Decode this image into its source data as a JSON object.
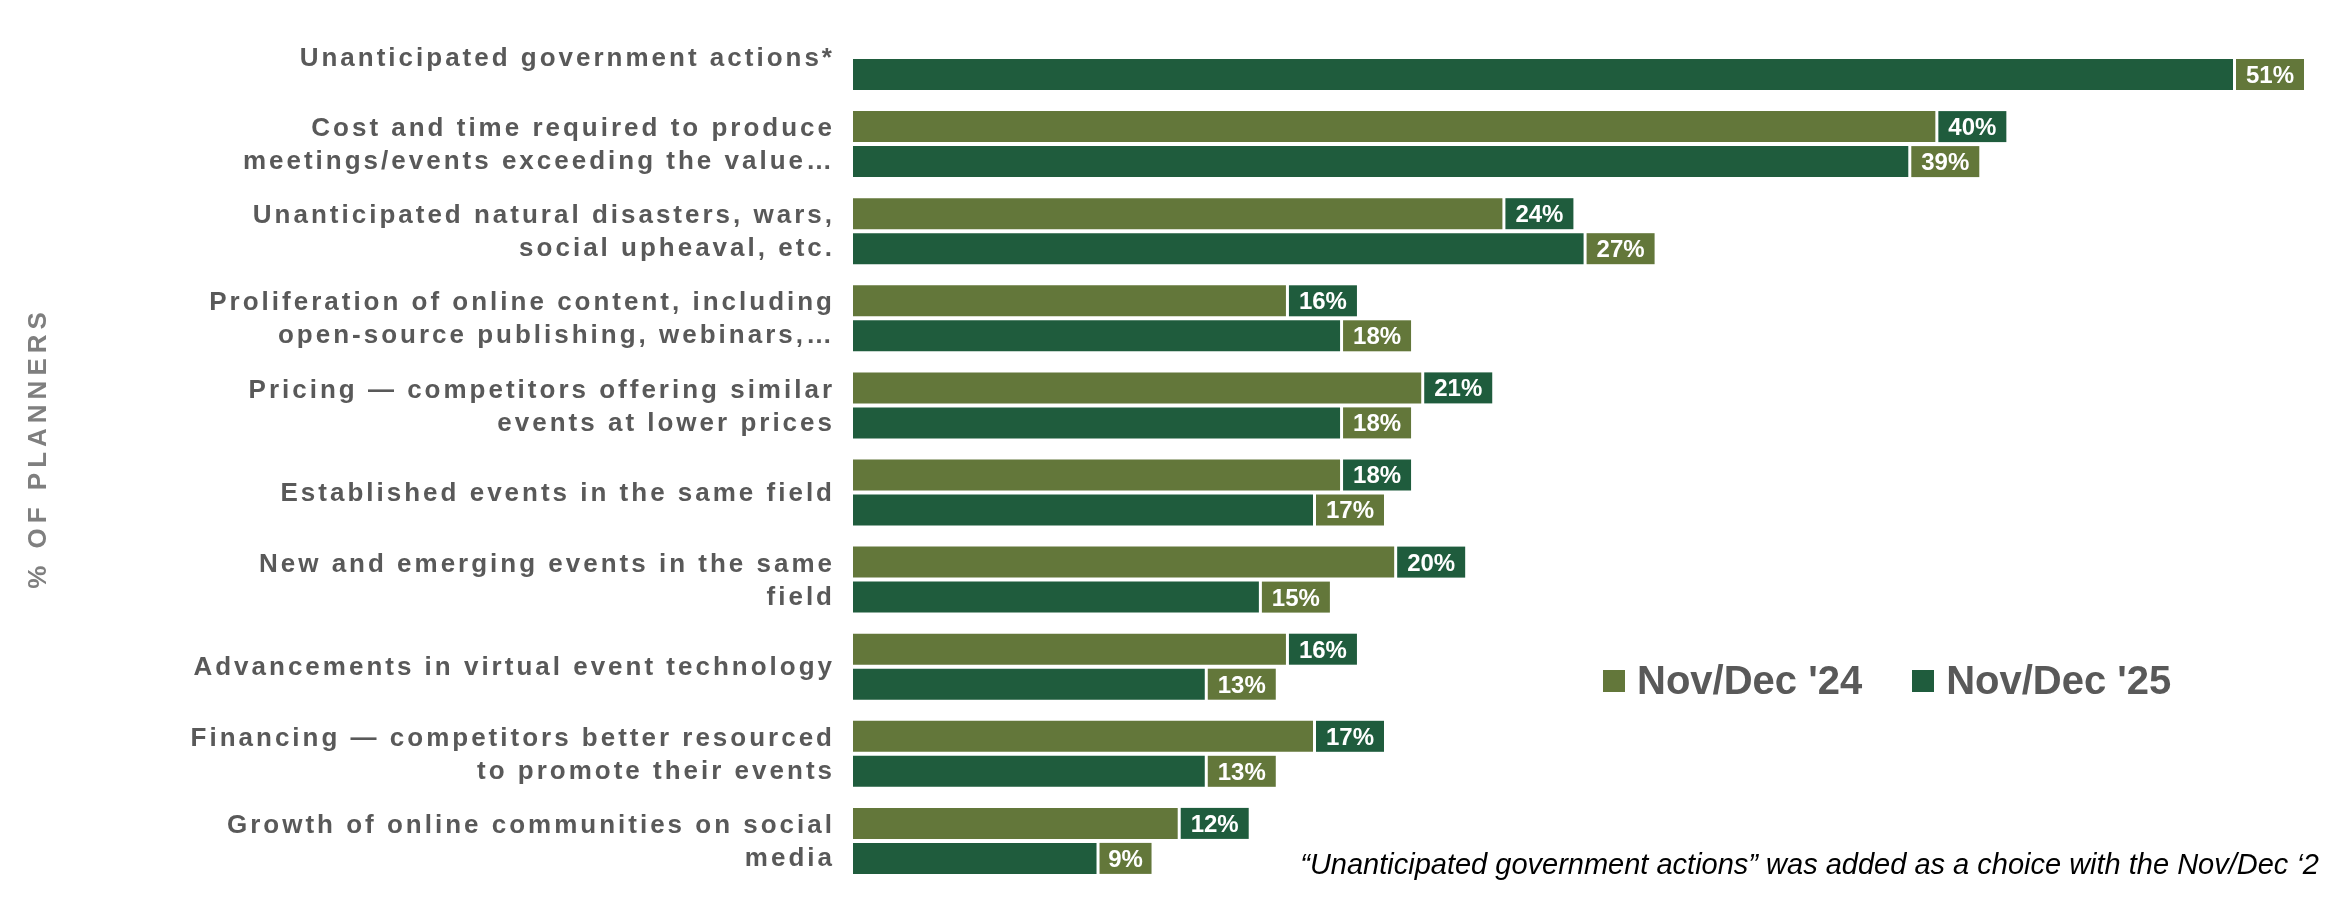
{
  "chart_data": {
    "type": "bar",
    "orientation": "horizontal",
    "categories": [
      "Unanticipated government actions*",
      "Cost and time required to produce\nmeetings/events exceeding the value…",
      "Unanticipated natural disasters, wars,\nsocial upheaval, etc.",
      "Proliferation of online content, including\nopen-source publishing, webinars,…",
      "Pricing — competitors offering similar\nevents at lower prices",
      "Established events in the same field",
      "New and emerging events in the same\nfield",
      "Advancements in virtual event technology",
      "Financing — competitors better resourced\nto promote their events",
      "Growth of online communities on social\nmedia"
    ],
    "series": [
      {
        "name": "Nov/Dec '24",
        "color": "#63773a",
        "values": [
          null,
          40,
          24,
          16,
          21,
          18,
          20,
          16,
          17,
          12
        ],
        "value_labels": [
          null,
          "40%",
          "24%",
          "16%",
          "21%",
          "18%",
          "20%",
          "16%",
          "17%",
          "12%"
        ]
      },
      {
        "name": "Nov/Dec '25",
        "color": "#1f5c3d",
        "values": [
          51,
          39,
          27,
          18,
          18,
          17,
          15,
          13,
          13,
          9
        ],
        "value_labels": [
          "51%",
          "39%",
          "27%",
          "18%",
          "18%",
          "17%",
          "15%",
          "13%",
          "13%",
          "9%"
        ]
      }
    ],
    "legend": "right",
    "grid": false,
    "annotations": [
      "% OF PLANNERS",
      "“Unanticipated government actions” was added as a choice with the Nov/Dec ‘2"
    ]
  }
}
